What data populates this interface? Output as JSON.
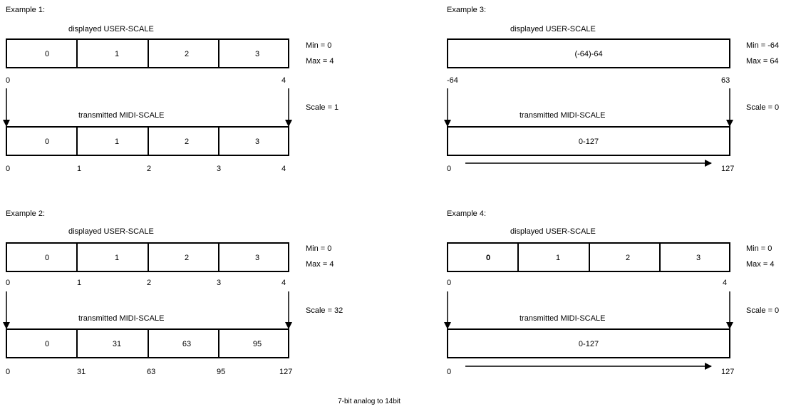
{
  "examples": {
    "ex1": {
      "title": "Example 1:",
      "user_caption": "displayed USER-SCALE",
      "midi_caption": "transmitted MIDI-SCALE",
      "min": "Min = 0",
      "max": "Max = 4",
      "scale": "Scale = 1",
      "user_cells": [
        "0",
        "1",
        "2",
        "3"
      ],
      "user_ticks": [
        "0",
        "4"
      ],
      "midi_cells": [
        "0",
        "1",
        "2",
        "3"
      ],
      "midi_ticks": [
        "0",
        "1",
        "2",
        "3",
        "4"
      ]
    },
    "ex2": {
      "title": "Example 2:",
      "user_caption": "displayed USER-SCALE",
      "midi_caption": "transmitted MIDI-SCALE",
      "min": "Min = 0",
      "max": "Max = 4",
      "scale": "Scale = 32",
      "user_cells": [
        "0",
        "1",
        "2",
        "3"
      ],
      "user_ticks": [
        "0",
        "1",
        "2",
        "3",
        "4"
      ],
      "midi_cells": [
        "0",
        "31",
        "63",
        "95"
      ],
      "midi_ticks": [
        "0",
        "31",
        "63",
        "95",
        "127"
      ]
    },
    "ex3": {
      "title": "Example 3:",
      "user_caption": "displayed USER-SCALE",
      "midi_caption": "transmitted MIDI-SCALE",
      "min": "Min = -64",
      "max": "Max = 64",
      "scale": "Scale = 0",
      "user_range": "(-64)-64",
      "user_ticks": [
        "-64",
        "63"
      ],
      "midi_range": "0-127",
      "midi_ticks": [
        "0",
        "127"
      ]
    },
    "ex4": {
      "title": "Example 4:",
      "user_caption": "displayed USER-SCALE",
      "midi_caption": "transmitted MIDI-SCALE",
      "min": "Min = 0",
      "max": "Max = 4",
      "scale": "Scale = 0",
      "user_cells": [
        "0",
        "1",
        "2",
        "3"
      ],
      "user_ticks": [
        "0",
        "4"
      ],
      "midi_range": "0-127",
      "midi_ticks": [
        "0",
        "127"
      ]
    }
  },
  "footer": "7-bit analog to 14bit"
}
